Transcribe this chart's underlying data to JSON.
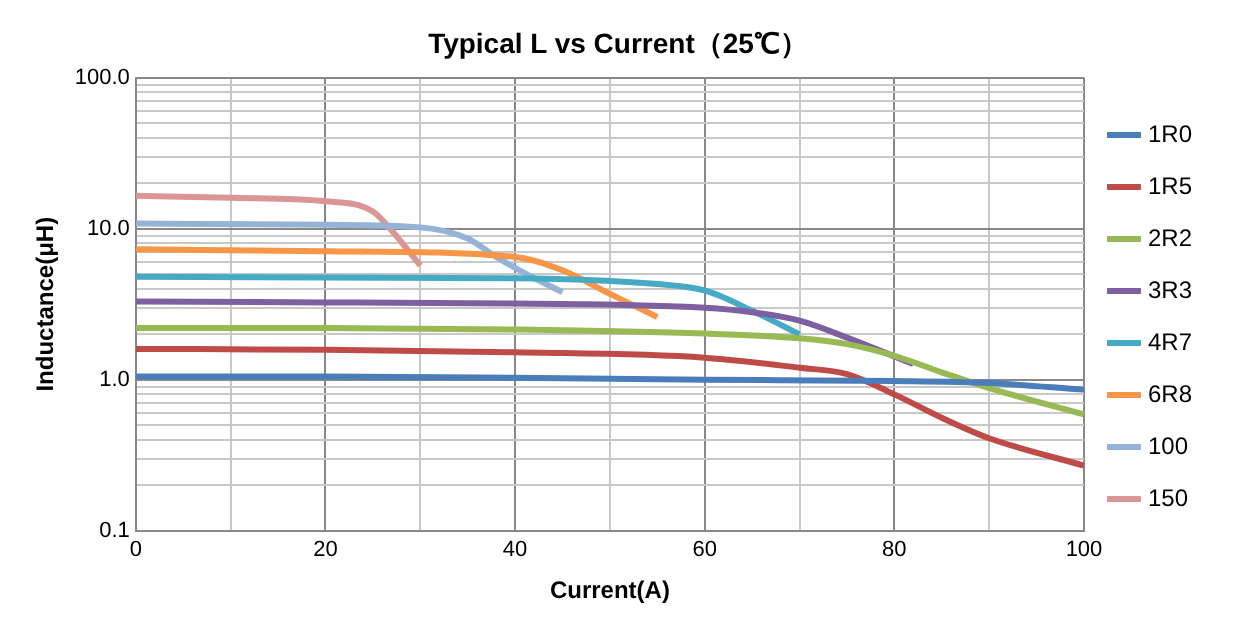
{
  "chart_data": {
    "type": "line",
    "title": "Typical L vs Current（25℃）",
    "xlabel": "Current(A)",
    "ylabel": "Inductance(μH)",
    "log": "y",
    "grid": true,
    "legend": "right",
    "marker": "none",
    "line_style": "solid",
    "xlim": [
      0,
      100
    ],
    "ylim": [
      0.1,
      100
    ],
    "xticks": [
      0,
      {
        "value": 10,
        "label": null
      },
      20,
      {
        "value": 30,
        "label": null
      },
      40,
      {
        "value": 50,
        "label": null
      },
      60,
      {
        "value": 70,
        "label": null
      },
      80,
      {
        "value": 90,
        "label": null
      },
      100
    ],
    "yticks": [
      {
        "value": 0.1,
        "label": "0.1"
      },
      {
        "value": 0.2,
        "label": null
      },
      {
        "value": 0.3,
        "label": null
      },
      {
        "value": 0.4,
        "label": null
      },
      {
        "value": 0.5,
        "label": null
      },
      {
        "value": 0.6,
        "label": null
      },
      {
        "value": 0.7,
        "label": null
      },
      {
        "value": 0.8,
        "label": null
      },
      {
        "value": 0.9,
        "label": null
      },
      {
        "value": 1,
        "label": "1.0"
      },
      {
        "value": 2,
        "label": null
      },
      {
        "value": 3,
        "label": null
      },
      {
        "value": 4,
        "label": null
      },
      {
        "value": 5,
        "label": null
      },
      {
        "value": 6,
        "label": null
      },
      {
        "value": 7,
        "label": null
      },
      {
        "value": 8,
        "label": null
      },
      {
        "value": 9,
        "label": null
      },
      {
        "value": 10,
        "label": "10.0"
      },
      {
        "value": 20,
        "label": null
      },
      {
        "value": 30,
        "label": null
      },
      {
        "value": 40,
        "label": null
      },
      {
        "value": 50,
        "label": null
      },
      {
        "value": 60,
        "label": null
      },
      {
        "value": 70,
        "label": null
      },
      {
        "value": 80,
        "label": null
      },
      {
        "value": 90,
        "label": null
      },
      {
        "value": 100,
        "label": "100.0"
      }
    ],
    "series": [
      {
        "name": "1R0",
        "color": "#4a7ebb",
        "x": [
          0,
          20,
          40,
          60,
          80,
          90,
          100
        ],
        "values": [
          1.05,
          1.05,
          1.03,
          1.0,
          0.98,
          0.95,
          0.86
        ]
      },
      {
        "name": "1R5",
        "color": "#be4b48",
        "x": [
          0,
          20,
          40,
          60,
          70,
          75,
          80,
          85,
          90,
          100
        ],
        "values": [
          1.6,
          1.58,
          1.52,
          1.4,
          1.2,
          1.09,
          0.8,
          0.56,
          0.41,
          0.27
        ]
      },
      {
        "name": "2R2",
        "color": "#98b954",
        "x": [
          0,
          20,
          40,
          60,
          70,
          75,
          80,
          85,
          90,
          100
        ],
        "values": [
          2.2,
          2.2,
          2.15,
          2.02,
          1.88,
          1.72,
          1.44,
          1.12,
          0.88,
          0.59
        ]
      },
      {
        "name": "3R3",
        "color": "#7d60a0",
        "x": [
          0,
          20,
          40,
          60,
          65,
          70,
          75,
          82
        ],
        "values": [
          3.3,
          3.25,
          3.2,
          3.0,
          2.8,
          2.46,
          1.9,
          1.27
        ]
      },
      {
        "name": "4R7",
        "color": "#46aac5",
        "x": [
          0,
          20,
          40,
          55,
          60,
          65,
          70
        ],
        "values": [
          4.8,
          4.75,
          4.7,
          4.3,
          3.9,
          2.86,
          2.0
        ]
      },
      {
        "name": "6R8",
        "color": "#f79646",
        "x": [
          0,
          20,
          40,
          45,
          50,
          55
        ],
        "values": [
          7.3,
          7.1,
          6.5,
          5.3,
          3.7,
          2.6
        ]
      },
      {
        "name": "100",
        "color": "#95b3d7",
        "x": [
          0,
          20,
          30,
          35,
          38,
          42,
          45
        ],
        "values": [
          10.8,
          10.6,
          10.2,
          8.6,
          6.5,
          4.7,
          3.8
        ]
      },
      {
        "name": "150",
        "color": "#d99694",
        "x": [
          0,
          10,
          20,
          25,
          27,
          30
        ],
        "values": [
          16.5,
          16,
          15.2,
          13,
          9.7,
          5.7
        ]
      }
    ]
  }
}
